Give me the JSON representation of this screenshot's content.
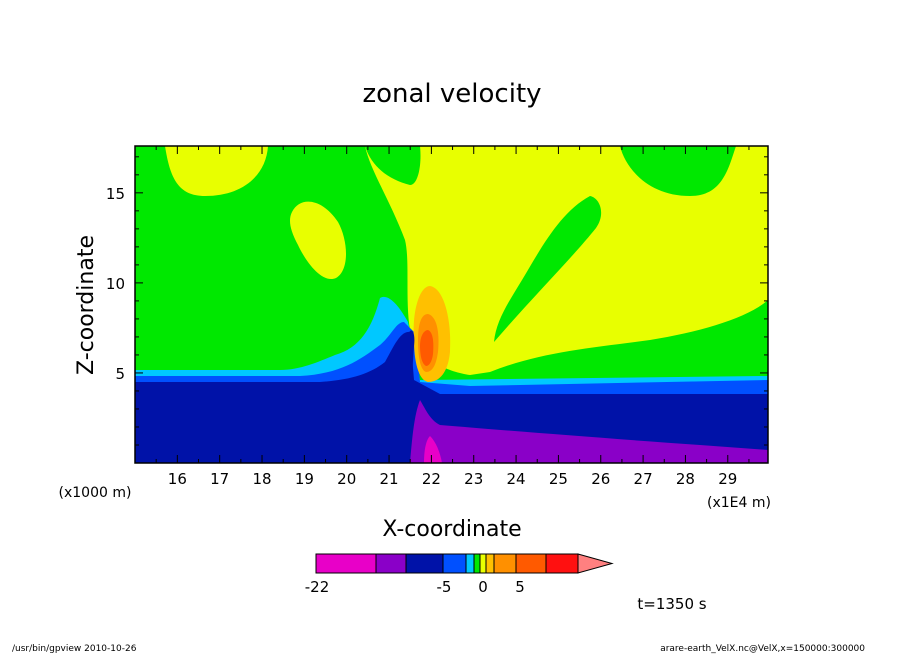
{
  "chart_data": {
    "type": "heatmap",
    "title": "zonal velocity",
    "xlabel": "X-coordinate",
    "ylabel": "Z-coordinate",
    "x_unit_label": "(x1E4 m)",
    "y_unit_label": "(x1000 m)",
    "xlim": [
      15.0,
      29.95
    ],
    "ylim": [
      0.0,
      17.6
    ],
    "x_ticks": [
      16,
      17,
      18,
      19,
      20,
      21,
      22,
      23,
      24,
      25,
      26,
      27,
      28,
      29
    ],
    "y_ticks": [
      5,
      10,
      15
    ],
    "colorbar": {
      "colors": [
        "#e800c8",
        "#8a00c8",
        "#0012a8",
        "#0050ff",
        "#00c8ff",
        "#00e800",
        "#e8ff00",
        "#ffc000",
        "#ff9000",
        "#ff5a00",
        "#ff1010",
        "#ff8080"
      ],
      "tick_labels": [
        "-22",
        "-5",
        "0",
        "5"
      ],
      "levels": [
        -22,
        -17,
        -12,
        -5,
        -3,
        -1,
        0,
        1,
        3,
        5,
        8,
        11
      ]
    },
    "regions": [
      {
        "name": "lower-westward-jet",
        "color": "#0012a8",
        "x": [
          15.0,
          29.95
        ],
        "z": [
          0.0,
          4.0
        ]
      },
      {
        "name": "strong-westward-core",
        "color": "#8a00c8",
        "x": [
          21.7,
          29.95
        ],
        "z": [
          0.3,
          3.8
        ]
      },
      {
        "name": "downslope-peak",
        "color": "#e800c8",
        "x": [
          21.8,
          22.1
        ],
        "z": [
          0.0,
          1.5
        ]
      },
      {
        "name": "eastward-lee-core",
        "color": "#ff9000",
        "x": [
          21.7,
          22.1
        ],
        "z": [
          5.4,
          7.4
        ]
      },
      {
        "name": "upper-eastward-plume",
        "color": "#e8ff00",
        "x": [
          20.8,
          29.95
        ],
        "z": [
          5.5,
          17.6
        ]
      }
    ],
    "time_label": "t=1350 s"
  },
  "footer": {
    "left": "/usr/bin/gpview  2010-10-26",
    "right": "arare-earth_VelX.nc@VelX,x=150000:300000"
  }
}
